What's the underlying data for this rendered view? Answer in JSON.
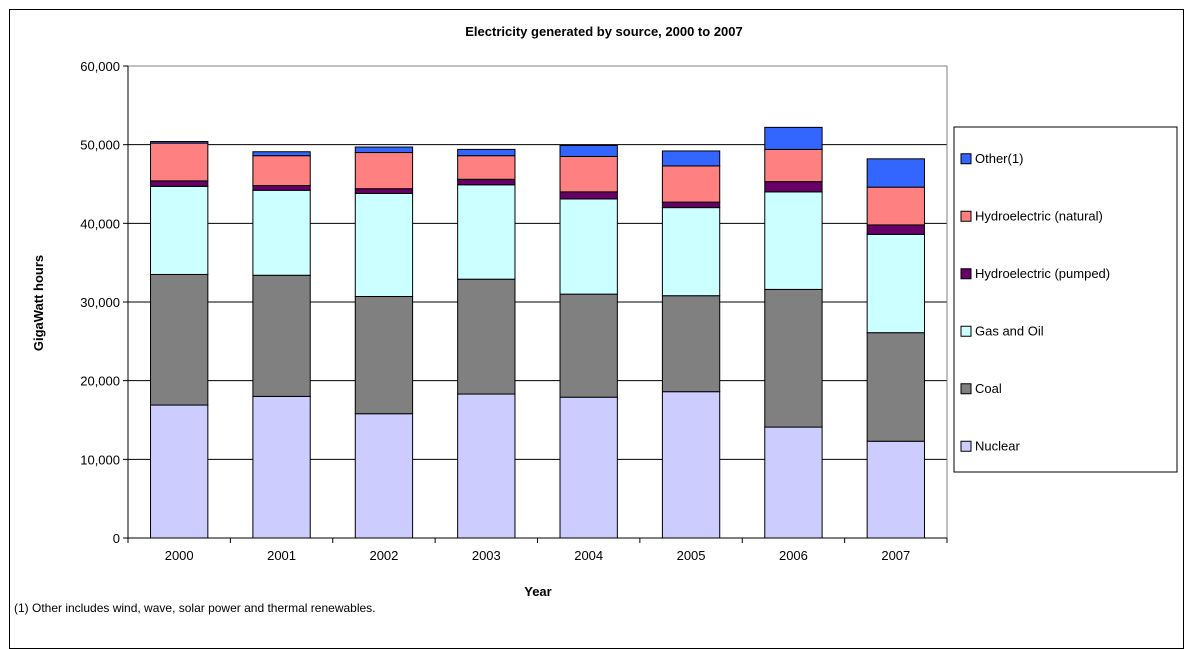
{
  "chart_data": {
    "type": "bar",
    "stacked": true,
    "title": "Electricity generated by source, 2000 to 2007",
    "xlabel": "Year",
    "ylabel": "GigaWatt hours",
    "ylim": [
      0,
      60000
    ],
    "yticks": [
      "0",
      "10,000",
      "20,000",
      "30,000",
      "40,000",
      "50,000",
      "60,000"
    ],
    "ytick_values": [
      0,
      10000,
      20000,
      30000,
      40000,
      50000,
      60000
    ],
    "grid": true,
    "legend_position": "right",
    "categories": [
      "2000",
      "2001",
      "2002",
      "2003",
      "2004",
      "2005",
      "2006",
      "2007"
    ],
    "series": [
      {
        "name": "Nuclear",
        "color": "#CCCCFF",
        "values": [
          16900,
          18000,
          15800,
          18300,
          17900,
          18600,
          14100,
          12300
        ]
      },
      {
        "name": "Coal",
        "color": "#808080",
        "values": [
          16600,
          15400,
          14900,
          14600,
          13100,
          12200,
          17500,
          13800
        ]
      },
      {
        "name": "Gas and Oil",
        "color": "#CCFFFF",
        "values": [
          11200,
          10800,
          13100,
          12000,
          12100,
          11200,
          12400,
          12500
        ]
      },
      {
        "name": "Hydroelectric (pumped)",
        "color": "#660066",
        "values": [
          700,
          600,
          600,
          700,
          900,
          700,
          1300,
          1200
        ]
      },
      {
        "name": "Hydroelectric (natural)",
        "color": "#FF8080",
        "values": [
          4800,
          3800,
          4600,
          3000,
          4500,
          4600,
          4100,
          4800
        ]
      },
      {
        "name": "Other(1)",
        "color": "#3366FF",
        "values": [
          200,
          500,
          700,
          800,
          1400,
          1900,
          2800,
          3600
        ]
      }
    ],
    "footnote": "(1) Other includes wind, wave, solar power and thermal renewables."
  }
}
